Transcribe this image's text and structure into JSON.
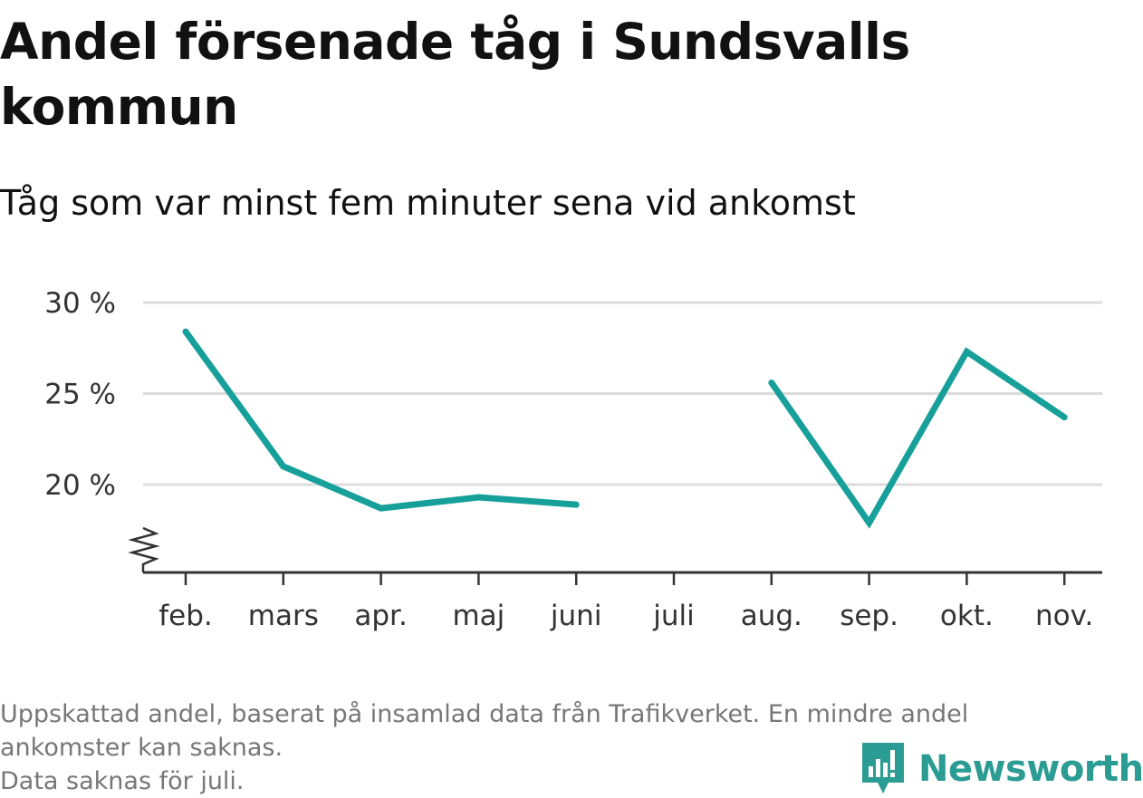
{
  "title": "Andel försenade tåg i Sundsvalls kommun",
  "subtitle": "Tåg som var minst fem minuter sena vid ankomst",
  "footnote": {
    "line1": "Uppskattad andel, baserat på insamlad data från Trafikverket. En mindre andel",
    "line2": "ankomster kan saknas.",
    "line3": "Data saknas för juli."
  },
  "brand": {
    "name": "Newsworthy",
    "color": "#2b9c94",
    "icon": "newsworthy-logo-icon"
  },
  "colors": {
    "line": "#17a09a",
    "grid": "#dcdcdc",
    "axis": "#333333"
  },
  "chart_data": {
    "type": "line",
    "categories": [
      "feb.",
      "mars",
      "apr.",
      "maj",
      "juni",
      "juli",
      "aug.",
      "sep.",
      "okt.",
      "nov."
    ],
    "series": [
      {
        "values": [
          28.4,
          21.0,
          18.7,
          19.3,
          18.9,
          null,
          25.6,
          17.9,
          27.3,
          23.7
        ]
      }
    ],
    "yticks": [
      {
        "value": 20,
        "label": "20 %"
      },
      {
        "value": 25,
        "label": "25 %"
      },
      {
        "value": 30,
        "label": "30 %"
      }
    ],
    "ylim": [
      15.2,
      30
    ],
    "y_axis_break": true,
    "grid": true,
    "legend": "none",
    "xlabel": "",
    "ylabel": ""
  }
}
